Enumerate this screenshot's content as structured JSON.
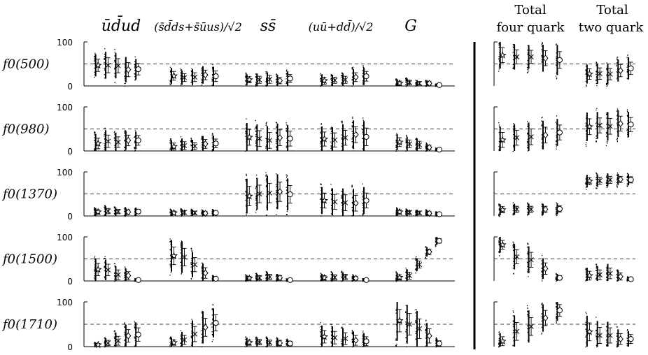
{
  "figure": {
    "row_labels": [
      "f0(500)",
      "f0(980)",
      "f0(1370)",
      "f0(1500)",
      "f0(1710)"
    ],
    "left_headers": [
      "ūd̄ud",
      "(s̄d̄ds+s̄ūus)/√2",
      "ss̄",
      "(uū+dd̄)/√2",
      "G"
    ],
    "right_headers": [
      {
        "line1": "Total",
        "line2": "four quark"
      },
      {
        "line1": "Total",
        "line2": "two quark"
      }
    ],
    "y_ticks": [
      "0",
      "100"
    ],
    "marker_legend": [
      "star",
      "cross",
      "x",
      "diamond",
      "circle"
    ]
  },
  "chart_data": {
    "type": "scatter",
    "ylim": [
      0,
      100
    ],
    "reference_line": 50,
    "columns": [
      "ūd̄ud",
      "(s̄d̄ds+s̄ūus)/√2",
      "ss̄",
      "(uū+dd̄)/√2",
      "G",
      "Total four quark",
      "Total two quark"
    ],
    "rows": [
      {
        "row": "f0(500)",
        "cells": [
          {
            "centers": [
              47,
              47,
              46,
              37,
              38
            ],
            "errors": [
              14,
              17,
              16,
              16,
              13
            ]
          },
          {
            "centers": [
              23,
              19,
              20,
              25,
              22
            ],
            "errors": [
              10,
              9,
              10,
              11,
              12
            ]
          },
          {
            "centers": [
              14,
              14,
              15,
              12,
              17
            ],
            "errors": [
              7,
              8,
              9,
              7,
              9
            ]
          },
          {
            "centers": [
              12,
              13,
              14,
              20,
              22
            ],
            "errors": [
              8,
              7,
              8,
              10,
              11
            ]
          },
          {
            "centers": [
              6,
              8,
              6,
              6,
              2
            ],
            "errors": [
              5,
              5,
              4,
              4,
              2
            ]
          },
          {
            "centers": [
              70,
              66,
              66,
              63,
              59
            ],
            "errors": [
              17,
              16,
              15,
              17,
              19
            ]
          },
          {
            "centers": [
              27,
              28,
              27,
              35,
              40
            ],
            "errors": [
              12,
              13,
              13,
              14,
              14
            ]
          }
        ]
      },
      {
        "row": "f0(980)",
        "cells": [
          {
            "centers": [
              17,
              22,
              20,
              24,
              24
            ],
            "errors": [
              12,
              14,
              12,
              12,
              11
            ]
          },
          {
            "centers": [
              10,
              12,
              11,
              16,
              17
            ],
            "errors": [
              8,
              9,
              8,
              10,
              10
            ]
          },
          {
            "centers": [
              31,
              28,
              24,
              30,
              28
            ],
            "errors": [
              18,
              18,
              18,
              18,
              17
            ]
          },
          {
            "centers": [
              27,
              25,
              30,
              37,
              32
            ],
            "errors": [
              16,
              16,
              17,
              18,
              20
            ]
          },
          {
            "centers": [
              20,
              16,
              14,
              8,
              3
            ],
            "errors": [
              10,
              9,
              8,
              5,
              2
            ]
          },
          {
            "centers": [
              25,
              30,
              32,
              36,
              42
            ],
            "errors": [
              17,
              17,
              18,
              18,
              17
            ]
          },
          {
            "centers": [
              55,
              58,
              56,
              62,
              60
            ],
            "errors": [
              18,
              17,
              18,
              17,
              16
            ]
          }
        ]
      },
      {
        "row": "f0(1370)",
        "cells": [
          {
            "centers": [
              9,
              11,
              10,
              9,
              10
            ],
            "errors": [
              5,
              6,
              5,
              5,
              5
            ]
          },
          {
            "centers": [
              7,
              8,
              7,
              6,
              7
            ],
            "errors": [
              4,
              4,
              4,
              4,
              4
            ]
          },
          {
            "centers": [
              45,
              50,
              52,
              55,
              49
            ],
            "errors": [
              22,
              20,
              22,
              22,
              20
            ]
          },
          {
            "centers": [
              35,
              32,
              30,
              29,
              35
            ],
            "errors": [
              17,
              17,
              18,
              18,
              17
            ]
          },
          {
            "centers": [
              9,
              8,
              7,
              6,
              4
            ],
            "errors": [
              5,
              4,
              4,
              4,
              3
            ]
          },
          {
            "centers": [
              14,
              15,
              15,
              15,
              16
            ],
            "errors": [
              7,
              7,
              7,
              7,
              7
            ]
          },
          {
            "centers": [
              79,
              80,
              82,
              83,
              82
            ],
            "errors": [
              8,
              8,
              8,
              7,
              7
            ]
          }
        ]
      },
      {
        "row": "f0(1500)",
        "cells": [
          {
            "centers": [
              26,
              25,
              14,
              12,
              2
            ],
            "errors": [
              14,
              13,
              11,
              9,
              2
            ]
          },
          {
            "centers": [
              57,
              54,
              37,
              18,
              5
            ],
            "errors": [
              20,
              20,
              16,
              12,
              4
            ]
          },
          {
            "centers": [
              6,
              7,
              9,
              7,
              2
            ],
            "errors": [
              4,
              5,
              6,
              5,
              2
            ]
          },
          {
            "centers": [
              7,
              8,
              9,
              6,
              2
            ],
            "errors": [
              5,
              6,
              6,
              4,
              2
            ]
          },
          {
            "centers": [
              8,
              12,
              37,
              66,
              91
            ],
            "errors": [
              6,
              8,
              8,
              6,
              5
            ]
          },
          {
            "centers": [
              82,
              55,
              48,
              28,
              7
            ],
            "errors": [
              10,
              16,
              17,
              13,
              5
            ]
          },
          {
            "centers": [
              12,
              14,
              17,
              10,
              4
            ],
            "errors": [
              10,
              11,
              12,
              8,
              3
            ]
          }
        ]
      },
      {
        "row": "f0(1710)",
        "cells": [
          {
            "centers": [
              4,
              8,
              13,
              24,
              27
            ],
            "errors": [
              3,
              6,
              10,
              14,
              15
            ]
          },
          {
            "centers": [
              9,
              15,
              28,
              43,
              53
            ],
            "errors": [
              6,
              10,
              17,
              20,
              18
            ]
          },
          {
            "centers": [
              9,
              10,
              9,
              8,
              7
            ],
            "errors": [
              6,
              6,
              6,
              6,
              5
            ]
          },
          {
            "centers": [
              22,
              20,
              18,
              14,
              12
            ],
            "errors": [
              14,
              14,
              13,
              11,
              10
            ]
          },
          {
            "centers": [
              58,
              50,
              40,
              24,
              7
            ],
            "errors": [
              25,
              24,
              22,
              16,
              6
            ]
          },
          {
            "centers": [
              12,
              34,
              45,
              64,
              81
            ],
            "errors": [
              10,
              20,
              20,
              17,
              13
            ]
          },
          {
            "centers": [
              33,
              25,
              25,
              17,
              17
            ],
            "errors": [
              20,
              18,
              17,
              12,
              10
            ]
          }
        ]
      }
    ]
  }
}
